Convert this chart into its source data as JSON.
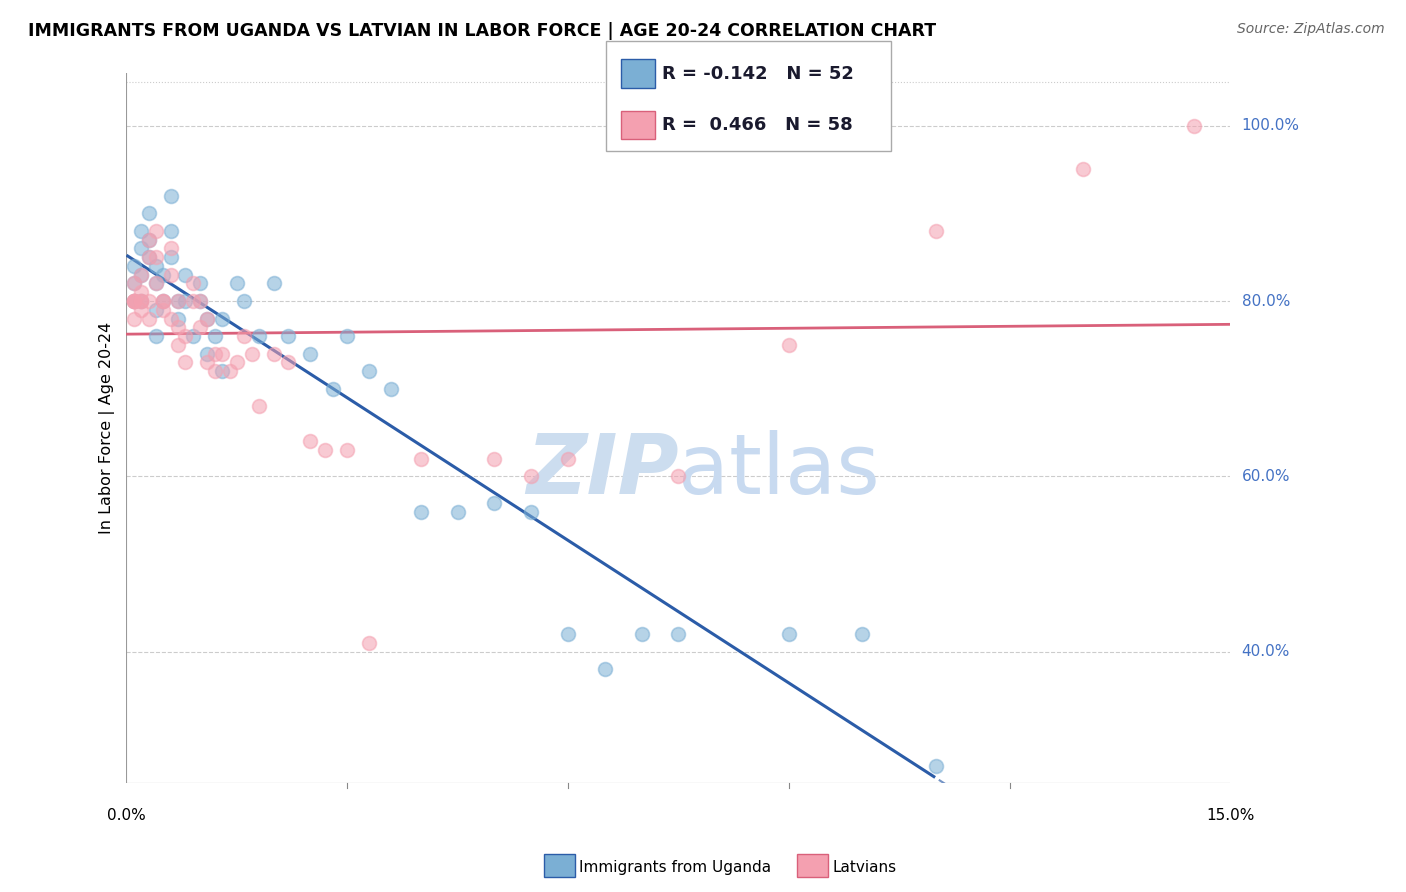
{
  "title": "IMMIGRANTS FROM UGANDA VS LATVIAN IN LABOR FORCE | AGE 20-24 CORRELATION CHART",
  "source": "Source: ZipAtlas.com",
  "ylabel": "In Labor Force | Age 20-24",
  "x_min": 0.0,
  "x_max": 0.15,
  "y_min": 0.25,
  "y_max": 1.06,
  "yticks": [
    0.4,
    0.6,
    0.8,
    1.0
  ],
  "ytick_labels": [
    "40.0%",
    "60.0%",
    "80.0%",
    "100.0%"
  ],
  "blue_R": -0.142,
  "blue_N": 52,
  "pink_R": 0.466,
  "pink_N": 58,
  "blue_label": "Immigrants from Uganda",
  "pink_label": "Latvians",
  "blue_color": "#7bafd4",
  "pink_color": "#f4a0b0",
  "blue_line_color": "#2b5ca8",
  "pink_line_color": "#d9607a",
  "watermark_zip": "ZIP",
  "watermark_atlas": "atlas",
  "blue_x": [
    0.001,
    0.001,
    0.001,
    0.002,
    0.002,
    0.002,
    0.002,
    0.003,
    0.003,
    0.003,
    0.004,
    0.004,
    0.004,
    0.004,
    0.005,
    0.005,
    0.006,
    0.006,
    0.006,
    0.007,
    0.007,
    0.008,
    0.008,
    0.009,
    0.01,
    0.01,
    0.011,
    0.011,
    0.012,
    0.013,
    0.013,
    0.015,
    0.016,
    0.018,
    0.02,
    0.022,
    0.025,
    0.028,
    0.03,
    0.033,
    0.036,
    0.04,
    0.045,
    0.05,
    0.055,
    0.06,
    0.065,
    0.07,
    0.075,
    0.09,
    0.1,
    0.11
  ],
  "blue_y": [
    0.82,
    0.8,
    0.84,
    0.8,
    0.83,
    0.86,
    0.88,
    0.85,
    0.87,
    0.9,
    0.82,
    0.84,
    0.79,
    0.76,
    0.8,
    0.83,
    0.85,
    0.88,
    0.92,
    0.8,
    0.78,
    0.83,
    0.8,
    0.76,
    0.82,
    0.8,
    0.78,
    0.74,
    0.76,
    0.72,
    0.78,
    0.82,
    0.8,
    0.76,
    0.82,
    0.76,
    0.74,
    0.7,
    0.76,
    0.72,
    0.7,
    0.56,
    0.56,
    0.57,
    0.56,
    0.42,
    0.38,
    0.42,
    0.42,
    0.42,
    0.42,
    0.27
  ],
  "pink_x": [
    0.001,
    0.001,
    0.001,
    0.001,
    0.001,
    0.001,
    0.002,
    0.002,
    0.002,
    0.002,
    0.002,
    0.003,
    0.003,
    0.003,
    0.003,
    0.004,
    0.004,
    0.004,
    0.005,
    0.005,
    0.005,
    0.006,
    0.006,
    0.006,
    0.007,
    0.007,
    0.007,
    0.008,
    0.008,
    0.009,
    0.009,
    0.01,
    0.01,
    0.011,
    0.011,
    0.012,
    0.012,
    0.013,
    0.014,
    0.015,
    0.016,
    0.017,
    0.018,
    0.02,
    0.022,
    0.025,
    0.027,
    0.03,
    0.033,
    0.04,
    0.05,
    0.055,
    0.06,
    0.075,
    0.09,
    0.11,
    0.13,
    0.145
  ],
  "pink_y": [
    0.8,
    0.8,
    0.82,
    0.8,
    0.78,
    0.8,
    0.83,
    0.81,
    0.79,
    0.8,
    0.8,
    0.87,
    0.85,
    0.8,
    0.78,
    0.88,
    0.85,
    0.82,
    0.8,
    0.79,
    0.8,
    0.86,
    0.83,
    0.78,
    0.8,
    0.75,
    0.77,
    0.76,
    0.73,
    0.82,
    0.8,
    0.8,
    0.77,
    0.78,
    0.73,
    0.74,
    0.72,
    0.74,
    0.72,
    0.73,
    0.76,
    0.74,
    0.68,
    0.74,
    0.73,
    0.64,
    0.63,
    0.63,
    0.41,
    0.62,
    0.62,
    0.6,
    0.62,
    0.6,
    0.75,
    0.88,
    0.95,
    1.0
  ]
}
